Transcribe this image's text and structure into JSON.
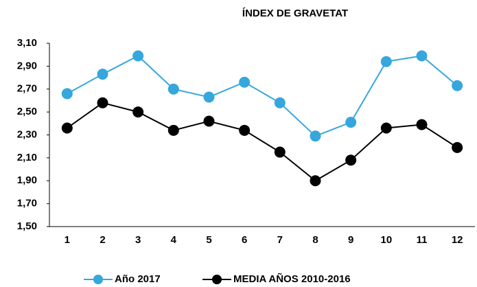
{
  "chart_data": {
    "type": "line",
    "title": "ÍNDEX DE GRAVETAT",
    "categories": [
      "1",
      "2",
      "3",
      "4",
      "5",
      "6",
      "7",
      "8",
      "9",
      "10",
      "11",
      "12"
    ],
    "series": [
      {
        "name": "Año 2017",
        "color": "#35a7dc",
        "values": [
          2.66,
          2.83,
          2.99,
          2.7,
          2.63,
          2.76,
          2.58,
          2.29,
          2.41,
          2.94,
          2.99,
          2.73
        ]
      },
      {
        "name": "MEDIA AÑOS 2010-2016",
        "color": "#000000",
        "values": [
          2.36,
          2.58,
          2.5,
          2.34,
          2.42,
          2.34,
          2.15,
          1.9,
          2.08,
          2.36,
          2.39,
          2.19
        ]
      }
    ],
    "ylim": [
      1.5,
      3.1
    ],
    "yticks": [
      {
        "value": 1.5,
        "label": "1,50"
      },
      {
        "value": 1.7,
        "label": "1,70"
      },
      {
        "value": 1.9,
        "label": "1,90"
      },
      {
        "value": 2.1,
        "label": "2,10"
      },
      {
        "value": 2.3,
        "label": "2,30"
      },
      {
        "value": 2.5,
        "label": "2,50"
      },
      {
        "value": 2.7,
        "label": "2,70"
      },
      {
        "value": 2.9,
        "label": "2,90"
      },
      {
        "value": 3.1,
        "label": "3,10"
      }
    ],
    "grid": false,
    "legend": "bottom"
  }
}
